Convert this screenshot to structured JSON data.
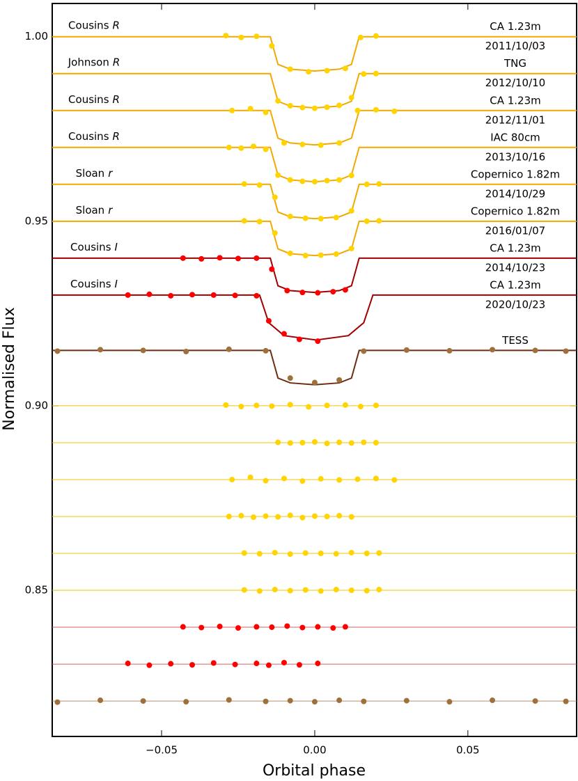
{
  "chart_data": {
    "type": "scatter",
    "xlabel": "Orbital phase",
    "ylabel": "Normalised Flux",
    "xlim": [
      -0.0857,
      0.0855
    ],
    "ylim": [
      0.8104,
      1.009
    ],
    "xticks": [
      {
        "value": -0.05,
        "label": "−0.05"
      },
      {
        "value": 0,
        "label": "0.00"
      },
      0.05
    ],
    "yticks": [
      0.85,
      {
        "value": 0.9,
        "label": "0.90"
      },
      0.95,
      {
        "value": 1,
        "label": "1.00"
      }
    ],
    "datasets": [
      {
        "filter": "Cousins",
        "band": "R",
        "telescope": "CA 1.23m",
        "date": "2011/10/03",
        "color": "#ffd400",
        "model_color": "#f2a900",
        "residual_color": "#f5c400",
        "baseline": 1.0,
        "residual_level": 0.9,
        "x": [
          -0.029,
          -0.024,
          -0.019,
          -0.014,
          -0.008,
          -0.002,
          0.004,
          0.01,
          0.015,
          0.02
        ],
        "y": [
          1.0003,
          0.9998,
          1.0001,
          0.9975,
          0.9912,
          0.9905,
          0.9908,
          0.9914,
          0.9998,
          1.0002
        ],
        "residual_y": [
          0.9002,
          0.8998,
          0.9001,
          0.8999,
          0.9003,
          0.8997,
          0.9001,
          0.9002,
          0.8998,
          0.9001
        ],
        "model_x": [
          -0.0857,
          -0.0145,
          -0.012,
          -0.008,
          0,
          0.008,
          0.012,
          0.0145,
          0.0855
        ],
        "model_y": [
          1.0,
          1.0,
          0.9925,
          0.9912,
          0.9907,
          0.9912,
          0.9925,
          1.0,
          1.0
        ]
      },
      {
        "filter": "Johnson",
        "band": "R",
        "telescope": "TNG",
        "date": "2012/10/10",
        "color": "#ffd400",
        "model_color": "#f2a900",
        "residual_color": "#f5c400",
        "baseline": 0.99,
        "residual_level": 0.89,
        "x": [
          -0.012,
          -0.008,
          -0.004,
          0,
          0.004,
          0.008,
          0.012,
          0.016,
          0.02
        ],
        "y": [
          0.9826,
          0.9813,
          0.9808,
          0.9806,
          0.9809,
          0.9814,
          0.9835,
          0.9899,
          0.99
        ],
        "residual_y": [
          0.8901,
          0.8899,
          0.89,
          0.8902,
          0.8898,
          0.8901,
          0.8899,
          0.8901,
          0.89
        ],
        "model_x": [
          -0.0857,
          -0.0145,
          -0.012,
          -0.008,
          0,
          0.008,
          0.012,
          0.0145,
          0.0855
        ],
        "model_y": [
          0.99,
          0.99,
          0.9825,
          0.9812,
          0.9807,
          0.9812,
          0.9825,
          0.99,
          0.99
        ]
      },
      {
        "filter": "Cousins",
        "band": "R",
        "telescope": "CA 1.23m",
        "date": "2012/11/01",
        "color": "#ffd400",
        "model_color": "#f2a900",
        "residual_color": "#f5c400",
        "baseline": 0.98,
        "residual_level": 0.88,
        "x": [
          -0.027,
          -0.021,
          -0.016,
          -0.01,
          -0.004,
          0.002,
          0.008,
          0.014,
          0.02,
          0.026
        ],
        "y": [
          0.98,
          0.9805,
          0.9795,
          0.9712,
          0.9708,
          0.9706,
          0.9712,
          0.98,
          0.9802,
          0.9798
        ],
        "residual_y": [
          0.88,
          0.8806,
          0.8797,
          0.8803,
          0.8796,
          0.8802,
          0.8799,
          0.8801,
          0.8803,
          0.8799
        ],
        "model_x": [
          -0.0857,
          -0.0145,
          -0.012,
          -0.008,
          0,
          0.008,
          0.012,
          0.0145,
          0.0855
        ],
        "model_y": [
          0.98,
          0.98,
          0.9725,
          0.9712,
          0.9707,
          0.9712,
          0.9725,
          0.98,
          0.98
        ]
      },
      {
        "filter": "Cousins",
        "band": "R",
        "telescope": "IAC 80cm",
        "date": "2013/10/16",
        "color": "#ffd400",
        "model_color": "#f2a900",
        "residual_color": "#f5c400",
        "baseline": 0.97,
        "residual_level": 0.87,
        "x": [
          -0.028,
          -0.024,
          -0.02,
          -0.016,
          -0.012,
          -0.008,
          -0.004,
          0,
          0.004,
          0.008,
          0.012
        ],
        "y": [
          0.97,
          0.9698,
          0.9703,
          0.9695,
          0.9625,
          0.9612,
          0.9608,
          0.9607,
          0.961,
          0.9612,
          0.9624
        ],
        "residual_y": [
          0.87,
          0.8702,
          0.8698,
          0.8701,
          0.8699,
          0.8703,
          0.8697,
          0.8701,
          0.87,
          0.8702,
          0.8699
        ],
        "model_x": [
          -0.0857,
          -0.0145,
          -0.012,
          -0.008,
          0,
          0.008,
          0.012,
          0.0145,
          0.0855
        ],
        "model_y": [
          0.97,
          0.97,
          0.9625,
          0.9612,
          0.9607,
          0.9612,
          0.9625,
          0.97,
          0.97
        ]
      },
      {
        "filter": "Sloan",
        "band": "r",
        "telescope": "Copernico 1.82m",
        "date": "2014/10/29",
        "color": "#ffd400",
        "model_color": "#f2a900",
        "residual_color": "#f5c400",
        "baseline": 0.96,
        "residual_level": 0.86,
        "x": [
          -0.023,
          -0.018,
          -0.013,
          -0.008,
          -0.003,
          0.002,
          0.007,
          0.012,
          0.017,
          0.021
        ],
        "y": [
          0.9601,
          0.9598,
          0.9565,
          0.9513,
          0.9508,
          0.9507,
          0.951,
          0.9528,
          0.96,
          0.9601
        ],
        "residual_y": [
          0.8601,
          0.8599,
          0.8602,
          0.8598,
          0.8601,
          0.86,
          0.8599,
          0.8602,
          0.86,
          0.8601
        ],
        "model_x": [
          -0.0857,
          -0.0145,
          -0.012,
          -0.008,
          0,
          0.008,
          0.012,
          0.0145,
          0.0855
        ],
        "model_y": [
          0.96,
          0.96,
          0.9525,
          0.9512,
          0.9507,
          0.9512,
          0.9525,
          0.96,
          0.96
        ]
      },
      {
        "filter": "Sloan",
        "band": "r",
        "telescope": "Copernico 1.82m",
        "date": "2016/01/07",
        "color": "#ffd400",
        "model_color": "#f2a900",
        "residual_color": "#f5c400",
        "baseline": 0.95,
        "residual_level": 0.85,
        "x": [
          -0.023,
          -0.018,
          -0.013,
          -0.008,
          -0.003,
          0.002,
          0.007,
          0.012,
          0.017,
          0.021
        ],
        "y": [
          0.9501,
          0.9499,
          0.9468,
          0.9413,
          0.9407,
          0.9408,
          0.9411,
          0.9426,
          0.95,
          0.9501
        ],
        "residual_y": [
          0.8501,
          0.8498,
          0.8502,
          0.8499,
          0.8501,
          0.8498,
          0.8502,
          0.85,
          0.8499,
          0.8502
        ],
        "model_x": [
          -0.0857,
          -0.0145,
          -0.012,
          -0.008,
          0,
          0.008,
          0.012,
          0.0145,
          0.0855
        ],
        "model_y": [
          0.95,
          0.95,
          0.9425,
          0.9412,
          0.9407,
          0.9412,
          0.9425,
          0.95,
          0.95
        ]
      },
      {
        "filter": "Cousins",
        "band": "I",
        "telescope": "CA 1.23m",
        "date": "2014/10/23",
        "color": "#ff0000",
        "model_color": "#a00000",
        "residual_color": "#d06060",
        "baseline": 0.94,
        "residual_level": 0.84,
        "x": [
          -0.043,
          -0.037,
          -0.031,
          -0.025,
          -0.019,
          -0.014,
          -0.009,
          -0.004,
          0.001,
          0.006,
          0.01
        ],
        "y": [
          0.94,
          0.9398,
          0.9401,
          0.9399,
          0.94,
          0.937,
          0.9312,
          0.9307,
          0.9306,
          0.9309,
          0.9314
        ],
        "residual_y": [
          0.8401,
          0.8399,
          0.8402,
          0.8398,
          0.8401,
          0.84,
          0.8403,
          0.8399,
          0.8401,
          0.8398,
          0.8401
        ],
        "model_x": [
          -0.0857,
          -0.0145,
          -0.012,
          -0.008,
          0,
          0.008,
          0.012,
          0.0145,
          0.0855
        ],
        "model_y": [
          0.94,
          0.94,
          0.9325,
          0.9312,
          0.9307,
          0.9312,
          0.9325,
          0.94,
          0.94
        ]
      },
      {
        "filter": "Cousins",
        "band": "I",
        "telescope": "CA 1.23m",
        "date": "2020/10/23",
        "color": "#ff0000",
        "model_color": "#a00000",
        "residual_color": "#d06060",
        "baseline": 0.93,
        "residual_level": 0.83,
        "x": [
          -0.061,
          -0.054,
          -0.047,
          -0.04,
          -0.033,
          -0.026,
          -0.019,
          -0.015,
          -0.01,
          -0.005,
          0.001
        ],
        "y": [
          0.93,
          0.9302,
          0.9298,
          0.9301,
          0.93,
          0.9299,
          0.9298,
          0.923,
          0.9195,
          0.918,
          0.9175
        ],
        "residual_y": [
          0.8302,
          0.8297,
          0.8301,
          0.8298,
          0.8303,
          0.8299,
          0.8302,
          0.8297,
          0.8304,
          0.8298,
          0.8302
        ],
        "model_x": [
          -0.0857,
          -0.018,
          -0.015,
          -0.01,
          0.0005,
          0.011,
          0.016,
          0.019,
          0.0855
        ],
        "model_y": [
          0.93,
          0.93,
          0.9225,
          0.919,
          0.9178,
          0.919,
          0.9225,
          0.93,
          0.93
        ]
      },
      {
        "telescope": "TESS",
        "color": "#a0703c",
        "model_color": "#6b2e10",
        "residual_color": "#b09070",
        "baseline": 0.915,
        "residual_level": 0.82,
        "x": [
          -0.084,
          -0.07,
          -0.056,
          -0.042,
          -0.028,
          -0.016,
          -0.008,
          0,
          0.008,
          0.016,
          0.03,
          0.044,
          0.058,
          0.072,
          0.082
        ],
        "y": [
          0.9148,
          0.9152,
          0.915,
          0.9147,
          0.9153,
          0.9149,
          0.9075,
          0.9063,
          0.907,
          0.9148,
          0.9151,
          0.9149,
          0.9152,
          0.915,
          0.9148
        ],
        "residual_y": [
          0.8197,
          0.8202,
          0.82,
          0.8198,
          0.8203,
          0.8199,
          0.8201,
          0.8198,
          0.8202,
          0.8199,
          0.8201,
          0.8198,
          0.8202,
          0.82,
          0.8199
        ],
        "model_x": [
          -0.0857,
          -0.0145,
          -0.012,
          -0.008,
          0,
          0.008,
          0.012,
          0.0145,
          0.0855
        ],
        "model_y": [
          0.915,
          0.915,
          0.9075,
          0.9062,
          0.9057,
          0.9062,
          0.9075,
          0.915,
          0.915
        ]
      }
    ]
  }
}
